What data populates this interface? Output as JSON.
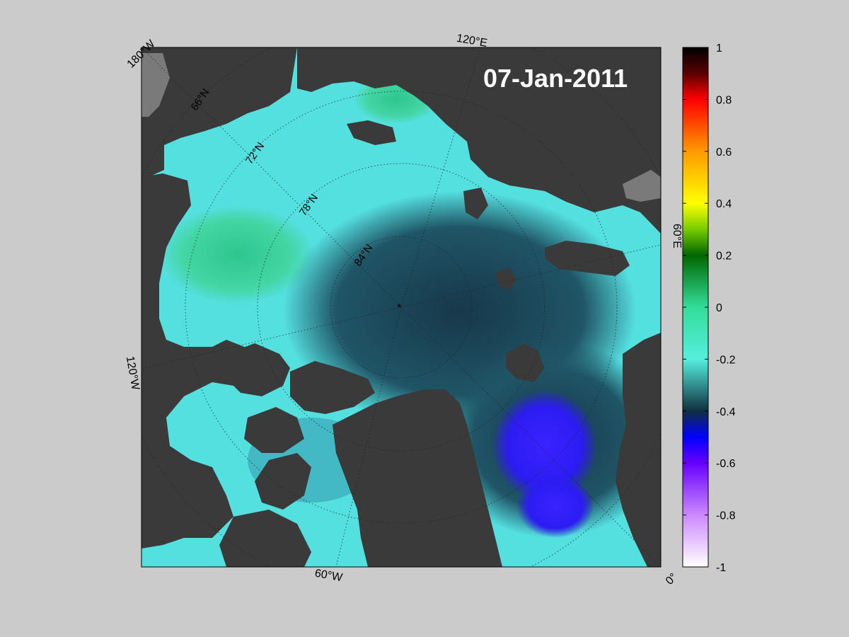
{
  "map": {
    "date": "07-Jan-2011",
    "longitude_labels": [
      "180°W",
      "120°E",
      "60°E",
      "0°",
      "60°W",
      "120°W"
    ],
    "latitude_labels": [
      "66°N",
      "72°N",
      "78°N",
      "84°N"
    ],
    "pole_marker": "*"
  },
  "colorbar": {
    "min": -1,
    "max": 1,
    "tick_labels": [
      "1",
      "0.8",
      "0.6",
      "0.4",
      "0.2",
      "0",
      "-0.2",
      "-0.4",
      "-0.6",
      "-0.8",
      "-1"
    ],
    "colors": {
      "1": "#000000",
      "0.8": "#ff0000",
      "0.6": "#ff9900",
      "0.4": "#ffff00",
      "0.2": "#006600",
      "0": "#33dd99",
      "-0.2": "#55eedd",
      "-0.4": "#0f2f3f",
      "-0.6": "#5500ff",
      "-0.8": "#cc88ff",
      "-1": "#ffffff"
    }
  },
  "colors": {
    "background": "#cbcbcb",
    "land": "#3a3a3a",
    "ocean_fill": "#55e0e0",
    "deep_negative": "#1f4f62",
    "strong_negative": "#2a1aff",
    "positive_anomaly": "#33cc99"
  }
}
